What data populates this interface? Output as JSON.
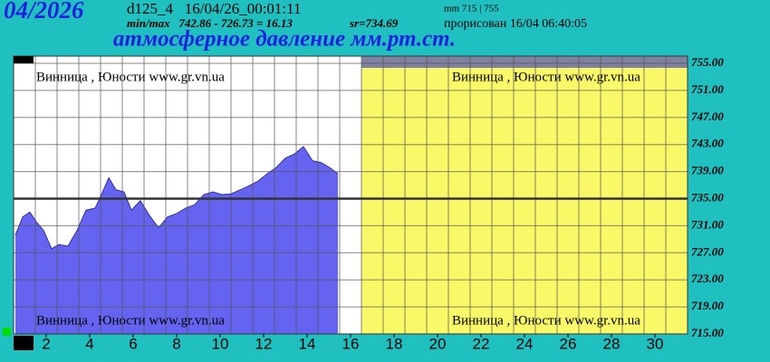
{
  "chart_data": {
    "type": "area",
    "period": "04/2026",
    "station_time": "d125_4   16/04/26_00:01:11",
    "minmax": "min/max   742.86 - 726.73 = 16.13",
    "mean": "sr=734.69",
    "scale_info": "mm 715 | 755",
    "drawn": "прорисован 16/04 06:40:05",
    "title": "атмосферное давление мм.рт.ст.",
    "watermark": "Винница , Юности   www.gr.vn.ua",
    "x": [
      0.58,
      0.92,
      1.25,
      1.54,
      1.88,
      2.25,
      2.58,
      3.0,
      3.42,
      3.83,
      4.25,
      4.54,
      4.88,
      5.21,
      5.58,
      5.92,
      6.33,
      6.75,
      7.17,
      7.58,
      8.0,
      8.42,
      8.83,
      9.25,
      9.67,
      10.08,
      10.5,
      10.92,
      11.33,
      11.75,
      12.17,
      12.58,
      13.0,
      13.42,
      13.83,
      14.25,
      14.67,
      15.08,
      15.42
    ],
    "series": [
      {
        "name": "pressure",
        "color": "#6464f0",
        "values": [
          729.6,
          732.3,
          733.0,
          731.6,
          730.3,
          727.6,
          728.2,
          728.0,
          730.3,
          733.3,
          733.6,
          735.6,
          738.1,
          736.3,
          736.0,
          733.3,
          734.7,
          732.5,
          730.7,
          732.3,
          732.8,
          733.6,
          734.1,
          735.6,
          736.0,
          735.6,
          735.7,
          736.3,
          736.9,
          737.6,
          738.7,
          739.6,
          741.0,
          741.6,
          742.7,
          740.6,
          740.3,
          739.5,
          738.7
        ]
      }
    ],
    "xlim": [
      0.5,
      31.5
    ],
    "xticks": [
      2,
      4,
      6,
      8,
      10,
      12,
      14,
      16,
      18,
      20,
      22,
      24,
      26,
      28,
      30
    ],
    "ylim": [
      715,
      755
    ],
    "yticks": [
      {
        "value": 715,
        "label": "715.00"
      },
      {
        "value": 719,
        "label": "719.00"
      },
      {
        "value": 723,
        "label": "723.00"
      },
      {
        "value": 727,
        "label": "727.00"
      },
      {
        "value": 731,
        "label": "731.00"
      },
      {
        "value": 735,
        "label": "735.00"
      },
      {
        "value": 739,
        "label": "739.00"
      },
      {
        "value": 743,
        "label": "743.00"
      },
      {
        "value": 747,
        "label": "747.00"
      },
      {
        "value": 751,
        "label": "751.00"
      },
      {
        "value": 755,
        "label": "755.00"
      }
    ],
    "reference_line": 735,
    "grid": true
  }
}
